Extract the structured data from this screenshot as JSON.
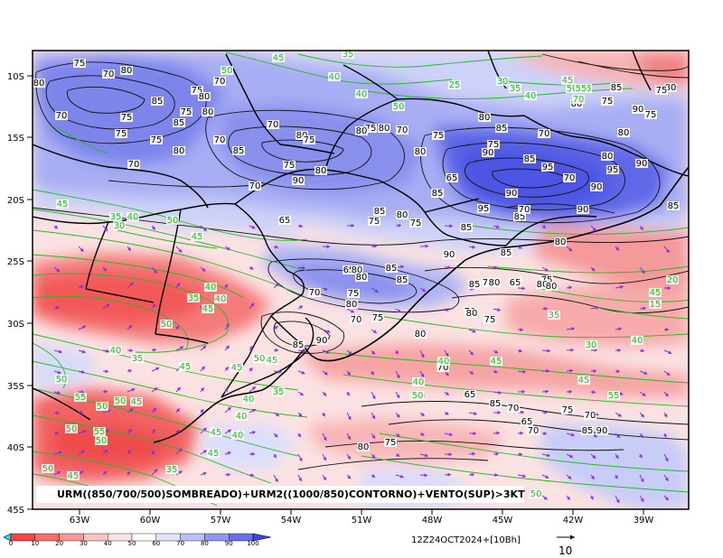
{
  "title": "URM((850/700/500)SOMBREADO)+URM2((1000/850)CONTORNO)+VENTO(SUP)>3KT",
  "valid_time": "12Z24OCT2024+[10Bh]",
  "vector_scale_label": "10",
  "lat_labels": [
    "10S",
    "15S",
    "20S",
    "25S",
    "30S",
    "35S",
    "40S",
    "45S"
  ],
  "lon_labels": [
    "63W",
    "60W",
    "57W",
    "54W",
    "51W",
    "48W",
    "45W",
    "42W",
    "39W"
  ],
  "colorbar": {
    "labels": [
      "0",
      "10",
      "20",
      "30",
      "40",
      "50",
      "60",
      "70",
      "80",
      "90",
      "100"
    ],
    "colors": [
      "#f04848",
      "#f47070",
      "#f89898",
      "#fbc4c4",
      "#fde4e4",
      "#ffffff",
      "#dfe3fb",
      "#b8bff6",
      "#8f97ee",
      "#6670e8"
    ]
  },
  "colors": {
    "moist_blue": "#6a72e8",
    "mid_blue": "#a4aaf2",
    "light_blue": "#d4d8fa",
    "dry_red": "#f26262",
    "mid_red": "#f7a0a0",
    "light_red": "#fcd6d6",
    "contour_green": "#22bb22",
    "vector_purple": "#8a2be2",
    "border_black": "#000000"
  },
  "contour_labels_black": [
    "75",
    "70",
    "80",
    "80",
    "75",
    "85",
    "80",
    "70",
    "75",
    "80",
    "75",
    "70",
    "75",
    "85",
    "70",
    "80",
    "75",
    "80",
    "70",
    "75",
    "85",
    "70",
    "90",
    "80",
    "75",
    "75",
    "80",
    "70",
    "80",
    "85",
    "70",
    "65",
    "75",
    "85",
    "80",
    "85",
    "90",
    "75",
    "80",
    "85",
    "95",
    "90",
    "95",
    "90",
    "85",
    "95",
    "90",
    "85",
    "90",
    "80",
    "85",
    "90",
    "80",
    "75",
    "80",
    "85",
    "65",
    "80",
    "85",
    "85",
    "70",
    "75",
    "80",
    "70",
    "75",
    "80",
    "90",
    "85",
    "85",
    "75",
    "80",
    "65",
    "75",
    "70",
    "75",
    "80",
    "90",
    "85",
    "70",
    "65",
    "75",
    "70",
    "80",
    "75",
    "80",
    "70",
    "85",
    "75",
    "80",
    "70",
    "75",
    "80",
    "80",
    "70",
    "85",
    "65",
    "70",
    "75",
    "80",
    "90",
    "70",
    "65",
    "75",
    "80"
  ],
  "contour_labels_green": [
    "45",
    "35",
    "50",
    "40",
    "40",
    "50",
    "25",
    "30",
    "35",
    "40",
    "50",
    "45",
    "45",
    "55",
    "70",
    "35",
    "40",
    "30",
    "45",
    "50",
    "35",
    "40",
    "45",
    "40",
    "50",
    "40",
    "35",
    "45",
    "45",
    "50",
    "45",
    "40",
    "35",
    "45",
    "50",
    "55",
    "50",
    "50",
    "45",
    "40",
    "45",
    "40",
    "45",
    "50",
    "55",
    "50",
    "50",
    "45",
    "35",
    "45",
    "20",
    "15",
    "35",
    "30",
    "40",
    "40",
    "45",
    "40",
    "50",
    "55",
    "45",
    "50"
  ]
}
